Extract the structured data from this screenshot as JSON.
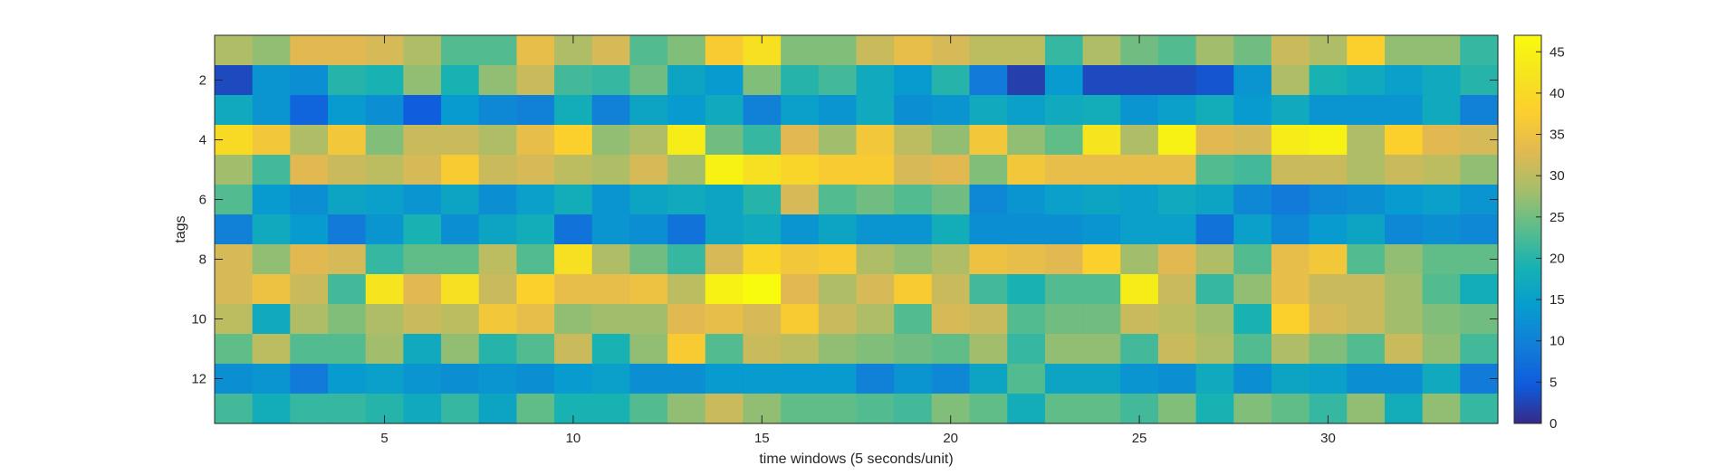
{
  "chart_data": {
    "type": "heatmap",
    "xlabel": "time windows (5 seconds/unit)",
    "ylabel": "tags",
    "x_ticks": [
      5,
      10,
      15,
      20,
      25,
      30
    ],
    "y_ticks": [
      2,
      4,
      6,
      8,
      10,
      12
    ],
    "xlim": [
      0.5,
      34.5
    ],
    "ylim": [
      0.5,
      13.5
    ],
    "colorbar": {
      "range": [
        0,
        47
      ],
      "ticks": [
        0,
        5,
        10,
        15,
        20,
        25,
        30,
        35,
        40,
        45
      ],
      "colormap": "parula"
    },
    "values": [
      [
        29,
        27,
        33,
        33,
        32,
        29,
        23,
        23,
        34,
        29,
        32,
        23,
        26,
        37,
        41,
        26,
        26,
        31,
        34,
        32,
        30,
        30,
        21,
        29,
        25,
        23,
        28,
        25,
        31,
        29,
        38,
        27,
        27,
        21
      ],
      [
        3,
        13,
        12,
        20,
        19,
        27,
        19,
        27,
        31,
        22,
        21,
        25,
        16,
        14,
        26,
        20,
        22,
        17,
        14,
        20,
        9,
        2,
        14,
        3,
        3,
        3,
        4,
        13,
        29,
        19,
        17,
        15,
        17,
        20
      ],
      [
        17,
        13,
        6,
        14,
        12,
        5,
        14,
        11,
        10,
        18,
        10,
        16,
        14,
        17,
        10,
        15,
        13,
        17,
        12,
        13,
        17,
        15,
        17,
        18,
        13,
        15,
        18,
        14,
        17,
        13,
        13,
        13,
        17,
        10
      ],
      [
        40,
        36,
        29,
        36,
        26,
        31,
        31,
        29,
        34,
        38,
        27,
        29,
        44,
        25,
        21,
        33,
        28,
        36,
        30,
        27,
        36,
        27,
        24,
        42,
        29,
        45,
        33,
        32,
        44,
        45,
        29,
        38,
        33,
        32
      ],
      [
        28,
        22,
        33,
        31,
        30,
        32,
        37,
        31,
        32,
        30,
        29,
        32,
        28,
        45,
        41,
        39,
        37,
        37,
        32,
        33,
        26,
        36,
        34,
        34,
        34,
        34,
        23,
        22,
        31,
        31,
        29,
        31,
        30,
        27
      ],
      [
        23,
        14,
        12,
        16,
        15,
        13,
        16,
        12,
        15,
        18,
        13,
        16,
        17,
        16,
        20,
        32,
        23,
        25,
        23,
        25,
        11,
        13,
        15,
        16,
        15,
        17,
        16,
        11,
        9,
        11,
        12,
        14,
        15,
        13
      ],
      [
        10,
        17,
        14,
        9,
        13,
        19,
        12,
        16,
        18,
        8,
        13,
        12,
        8,
        16,
        17,
        13,
        16,
        13,
        13,
        18,
        12,
        12,
        12,
        13,
        15,
        15,
        8,
        15,
        11,
        14,
        16,
        11,
        12,
        11
      ],
      [
        32,
        27,
        33,
        32,
        21,
        24,
        24,
        30,
        23,
        41,
        29,
        25,
        21,
        32,
        39,
        36,
        37,
        29,
        27,
        29,
        35,
        34,
        33,
        38,
        28,
        33,
        29,
        23,
        34,
        36,
        23,
        27,
        24,
        24
      ],
      [
        32,
        35,
        31,
        22,
        42,
        33,
        41,
        31,
        38,
        34,
        34,
        35,
        30,
        45,
        47,
        33,
        29,
        32,
        37,
        31,
        22,
        19,
        23,
        23,
        44,
        31,
        21,
        27,
        34,
        31,
        31,
        28,
        23,
        18
      ],
      [
        30,
        17,
        29,
        26,
        29,
        31,
        30,
        36,
        34,
        27,
        28,
        28,
        33,
        34,
        32,
        37,
        31,
        29,
        23,
        32,
        31,
        23,
        25,
        25,
        31,
        30,
        28,
        19,
        38,
        32,
        31,
        28,
        26,
        25
      ],
      [
        24,
        30,
        23,
        23,
        28,
        17,
        27,
        20,
        23,
        31,
        19,
        27,
        37,
        23,
        31,
        30,
        27,
        26,
        25,
        24,
        28,
        21,
        27,
        27,
        22,
        31,
        29,
        23,
        29,
        26,
        23,
        31,
        27,
        22
      ],
      [
        12,
        13,
        9,
        14,
        15,
        13,
        12,
        13,
        12,
        14,
        15,
        12,
        12,
        14,
        14,
        14,
        14,
        10,
        13,
        11,
        16,
        23,
        16,
        16,
        13,
        12,
        17,
        12,
        16,
        15,
        12,
        12,
        17,
        9
      ],
      [
        22,
        18,
        21,
        21,
        20,
        17,
        21,
        16,
        24,
        19,
        19,
        23,
        27,
        31,
        27,
        24,
        24,
        23,
        22,
        26,
        24,
        18,
        24,
        24,
        22,
        26,
        19,
        26,
        24,
        21,
        27,
        18,
        27,
        21
      ]
    ]
  }
}
